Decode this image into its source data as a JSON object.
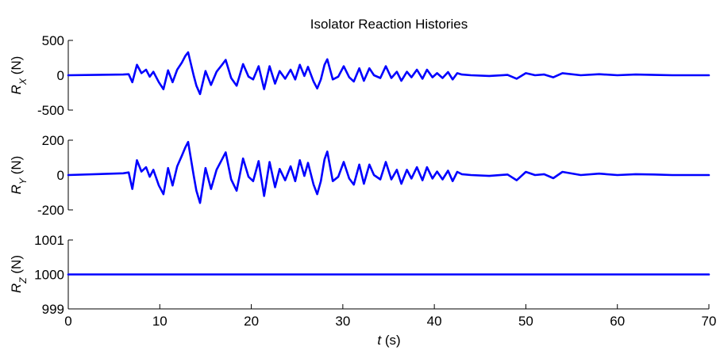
{
  "figure": {
    "title": "Isolator Reaction Histories",
    "xlabel_var": "t",
    "xlabel_unit": " (s)"
  },
  "colors": {
    "line": "#0000ff",
    "axis": "#000000",
    "background": "#ffffff"
  },
  "chart_data": [
    {
      "type": "line",
      "panel": "top",
      "ylabel_main": "R",
      "ylabel_sub": "X",
      "ylabel_unit": " (N)",
      "ylim": [
        -500,
        500
      ],
      "yticks": [
        "-500",
        "0",
        "500"
      ],
      "xlim": [
        0,
        70
      ],
      "xticks": [],
      "grid": false,
      "x": [
        0,
        6,
        6.6,
        7.0,
        7.5,
        8.0,
        8.5,
        8.9,
        9.3,
        9.9,
        10.4,
        10.9,
        11.4,
        11.9,
        12.4,
        12.8,
        13.1,
        13.7,
        14.0,
        14.4,
        15.0,
        15.6,
        16.2,
        16.8,
        17.2,
        17.8,
        18.4,
        19.1,
        19.7,
        20.2,
        20.8,
        21.4,
        22.0,
        22.6,
        23.1,
        23.7,
        24.3,
        24.8,
        25.3,
        25.8,
        26.2,
        26.8,
        27.2,
        27.6,
        28.0,
        28.3,
        28.9,
        29.5,
        30.1,
        30.7,
        31.2,
        31.8,
        32.3,
        32.9,
        33.4,
        34.1,
        34.7,
        35.3,
        35.9,
        36.4,
        37.0,
        37.5,
        38.1,
        38.7,
        39.2,
        39.8,
        40.3,
        40.9,
        41.5,
        42.0,
        42.5,
        43.0,
        44,
        46,
        48,
        49.0,
        50.0,
        51,
        52,
        53,
        54,
        56,
        58,
        60,
        62,
        64,
        66,
        68,
        70
      ],
      "y": [
        0,
        10,
        15,
        -100,
        150,
        30,
        80,
        -20,
        50,
        -100,
        -200,
        70,
        -100,
        80,
        180,
        280,
        330,
        0,
        -150,
        -270,
        60,
        -140,
        50,
        150,
        220,
        -40,
        -150,
        160,
        -20,
        -60,
        130,
        -200,
        130,
        -120,
        60,
        -50,
        80,
        -60,
        150,
        -10,
        120,
        -90,
        -190,
        -60,
        150,
        230,
        -60,
        -20,
        130,
        -30,
        -90,
        100,
        -80,
        100,
        0,
        -40,
        130,
        -40,
        50,
        -80,
        50,
        -30,
        80,
        -50,
        80,
        -30,
        30,
        -40,
        45,
        -60,
        30,
        10,
        0,
        -10,
        5,
        -50,
        30,
        0,
        10,
        -30,
        30,
        0,
        15,
        0,
        10,
        5,
        0,
        0,
        0
      ]
    },
    {
      "type": "line",
      "panel": "middle",
      "ylabel_main": "R",
      "ylabel_sub": "Y",
      "ylabel_unit": " (N)",
      "ylim": [
        -200,
        200
      ],
      "yticks": [
        "-200",
        "0",
        "200"
      ],
      "xlim": [
        0,
        70
      ],
      "xticks": [],
      "grid": false,
      "x": [
        0,
        6,
        6.6,
        7.0,
        7.5,
        8.0,
        8.5,
        8.9,
        9.3,
        9.9,
        10.4,
        10.9,
        11.4,
        11.9,
        12.4,
        12.8,
        13.1,
        13.7,
        14.0,
        14.4,
        15.0,
        15.6,
        16.2,
        16.8,
        17.2,
        17.8,
        18.4,
        19.1,
        19.7,
        20.2,
        20.8,
        21.4,
        22.0,
        22.6,
        23.1,
        23.7,
        24.3,
        24.8,
        25.3,
        25.8,
        26.2,
        26.8,
        27.2,
        27.6,
        28.0,
        28.3,
        28.9,
        29.5,
        30.1,
        30.7,
        31.2,
        31.8,
        32.3,
        32.9,
        33.4,
        34.1,
        34.7,
        35.3,
        35.9,
        36.4,
        37.0,
        37.5,
        38.1,
        38.7,
        39.2,
        39.8,
        40.3,
        40.9,
        41.5,
        42.0,
        42.5,
        43.0,
        44,
        46,
        48,
        49.0,
        50.0,
        51,
        52,
        53,
        54,
        56,
        58,
        60,
        62,
        64,
        66,
        68,
        70
      ],
      "y": [
        0,
        10,
        15,
        -80,
        85,
        20,
        45,
        -10,
        30,
        -60,
        -110,
        40,
        -60,
        50,
        110,
        160,
        190,
        0,
        -90,
        -160,
        40,
        -80,
        30,
        90,
        130,
        -25,
        -90,
        95,
        -10,
        -35,
        80,
        -120,
        75,
        -70,
        35,
        -30,
        50,
        -35,
        85,
        -5,
        70,
        -55,
        -110,
        -35,
        90,
        135,
        -35,
        -10,
        75,
        -20,
        -55,
        60,
        -50,
        60,
        0,
        -25,
        75,
        -25,
        30,
        -50,
        30,
        -20,
        45,
        -30,
        45,
        -20,
        20,
        -25,
        25,
        -35,
        18,
        5,
        0,
        -5,
        3,
        -30,
        18,
        0,
        5,
        -18,
        18,
        0,
        8,
        0,
        5,
        3,
        0,
        0,
        0
      ]
    },
    {
      "type": "line",
      "panel": "bottom",
      "ylabel_main": "R",
      "ylabel_sub": "Z",
      "ylabel_unit": " (N)",
      "ylim": [
        999,
        1001
      ],
      "yticks": [
        "999",
        "1000",
        "1001"
      ],
      "xlim": [
        0,
        70
      ],
      "xticks": [
        "0",
        "10",
        "20",
        "30",
        "40",
        "50",
        "60",
        "70"
      ],
      "grid": false,
      "x": [
        0,
        70
      ],
      "y": [
        1000,
        1000
      ]
    }
  ]
}
